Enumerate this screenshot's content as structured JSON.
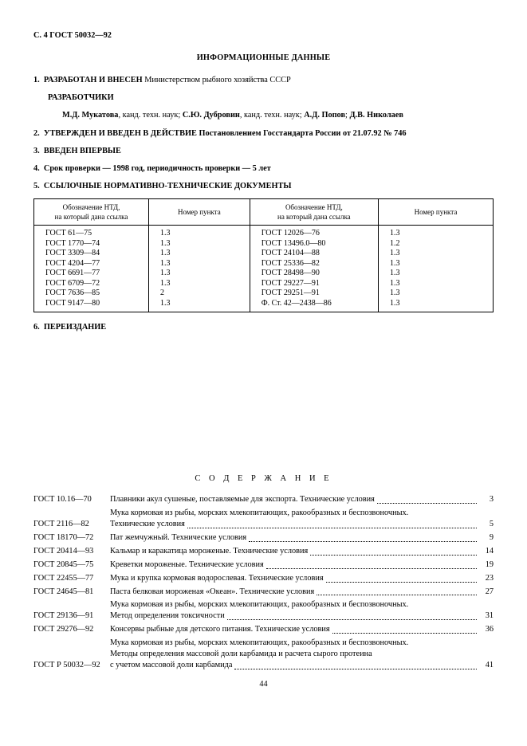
{
  "header": "С. 4  ГОСТ 50032—92",
  "title": "ИНФОРМАЦИОННЫЕ ДАННЫЕ",
  "s1": {
    "num": "1.",
    "head": "РАЗРАБОТАН И ВНЕСЕН",
    "tail": "Министерством рыбного хозяйства СССР"
  },
  "dev_label": "РАЗРАБОТЧИКИ",
  "authors": [
    {
      "name": "М.Д. Мукатова",
      "title": ", канд. техн. наук; "
    },
    {
      "name": "С.Ю. Дубровин",
      "title": ", канд. техн. наук; "
    },
    {
      "name": "А.Д. Попов",
      "title": "; "
    },
    {
      "name": "Д.В. Николаев",
      "title": ""
    }
  ],
  "s2": {
    "num": "2.",
    "head": "УТВЕРЖДЕН И ВВЕДЕН В ДЕЙСТВИЕ Постановлением Госстандарта России от 21.07.92 № 746"
  },
  "s3": {
    "num": "3.",
    "head": "ВВЕДЕН ВПЕРВЫЕ"
  },
  "s4": {
    "num": "4.",
    "head": "Срок проверки — 1998 год, периодичность проверки — 5 лет"
  },
  "s5": {
    "num": "5.",
    "head": "ССЫЛОЧНЫЕ НОРМАТИВНО-ТЕХНИЧЕСКИЕ ДОКУМЕНТЫ"
  },
  "s6": {
    "num": "6.",
    "head": "ПЕРЕИЗДАНИЕ"
  },
  "table": {
    "head": {
      "c1": "Обозначение НТД,\nна который дана ссылка",
      "c2": "Номер пункта",
      "c3": "Обозначение НТД,\nна который дана ссылка",
      "c4": "Номер пункта"
    },
    "rows": [
      {
        "a": "ГОСТ 61—75",
        "b": "1.3",
        "c": "ГОСТ 12026—76",
        "d": "1.3"
      },
      {
        "a": "ГОСТ 1770—74",
        "b": "1.3",
        "c": "ГОСТ 13496.0—80",
        "d": "1.2"
      },
      {
        "a": "ГОСТ 3309—84",
        "b": "1.3",
        "c": "ГОСТ 24104—88",
        "d": "1.3"
      },
      {
        "a": "ГОСТ 4204—77",
        "b": "1.3",
        "c": "ГОСТ 25336—82",
        "d": "1.3"
      },
      {
        "a": "ГОСТ 6691—77",
        "b": "1.3",
        "c": "ГОСТ 28498—90",
        "d": "1.3"
      },
      {
        "a": "ГОСТ 6709—72",
        "b": "1.3",
        "c": "ГОСТ 29227—91",
        "d": "1.3"
      },
      {
        "a": "ГОСТ 7636—85",
        "b": "2",
        "c": "ГОСТ 29251—91",
        "d": "1.3"
      },
      {
        "a": "ГОСТ 9147—80",
        "b": "1.3",
        "c": "Ф. Ст. 42—2438—86",
        "d": "1.3"
      }
    ]
  },
  "contents_title": "С О Д Е Р Ж А Н И Е",
  "toc": [
    {
      "code": "ГОСТ 10.16—70",
      "lines": [
        "Плавники акул сушеные, поставляемые для экспорта. Технические условия"
      ],
      "page": "3"
    },
    {
      "code": "ГОСТ 2116—82",
      "lines": [
        "Мука кормовая из рыбы, морских млекопитающих, ракообразных и беспозвоночных.",
        "Технические условия"
      ],
      "page": "5"
    },
    {
      "code": "ГОСТ 18170—72",
      "lines": [
        "Пат жемчужный. Технические условия"
      ],
      "page": "9"
    },
    {
      "code": "ГОСТ 20414—93",
      "lines": [
        "Кальмар и каракатица мороженые. Технические условия"
      ],
      "page": "14"
    },
    {
      "code": "ГОСТ 20845—75",
      "lines": [
        "Креветки мороженые. Технические условия"
      ],
      "page": "19"
    },
    {
      "code": "ГОСТ 22455—77",
      "lines": [
        "Мука и крупка кормовая водорослевая. Технические условия"
      ],
      "page": "23"
    },
    {
      "code": "ГОСТ 24645—81",
      "lines": [
        "Паста белковая мороженая «Океан». Технические условия"
      ],
      "page": "27"
    },
    {
      "code": "ГОСТ 29136—91",
      "lines": [
        "Мука кормовая из рыбы, морских млекопитающих, ракообразных и беспозвоночных.",
        "Метод определения токсичности"
      ],
      "page": "31"
    },
    {
      "code": "ГОСТ 29276—92",
      "lines": [
        "Консервы рыбные для детского питания. Технические условия"
      ],
      "page": "36"
    },
    {
      "code": "ГОСТ Р 50032—92",
      "lines": [
        "Мука кормовая из рыбы, морских млекопитающих, ракообразных и беспозвоночных.",
        "Методы определения массовой доли карбамида и расчета сырого протеина",
        "с учетом массовой доли карбамида"
      ],
      "page": "41"
    }
  ],
  "page_num": "44"
}
